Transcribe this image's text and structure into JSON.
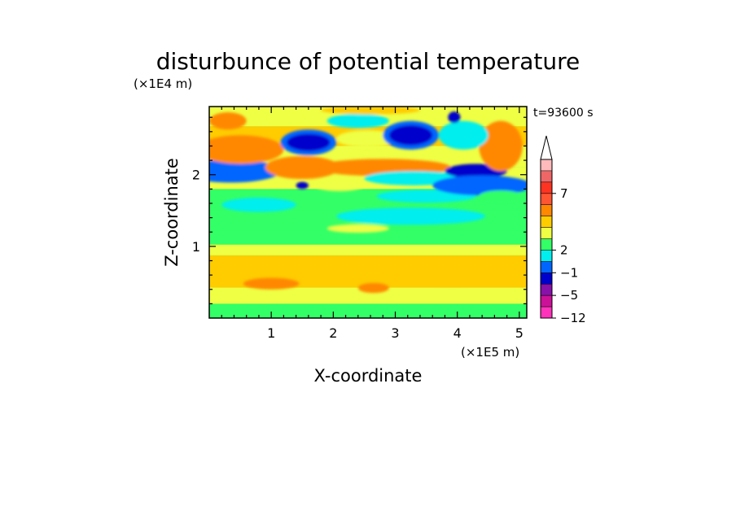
{
  "chart_data": {
    "type": "heatmap",
    "title": "disturbunce of potential temperature",
    "xlabel": "X-coordinate",
    "ylabel": "Z-coordinate",
    "x_unit": "(×1E5 m)",
    "y_unit": "(×1E4 m)",
    "time_label": "t=93600 s",
    "xlim": [
      0,
      5.12
    ],
    "ylim": [
      0,
      2.95
    ],
    "x_ticks": [
      "1",
      "2",
      "3",
      "4",
      "5"
    ],
    "y_ticks": [
      "1",
      "2"
    ],
    "colorbar": {
      "tick_labels": [
        "7",
        "2",
        "−1",
        "−5",
        "−12"
      ],
      "colors": [
        "#ff33bb",
        "#cc1199",
        "#8811aa",
        "#0000cc",
        "#0066ff",
        "#00eeee",
        "#33ff66",
        "#eeff44",
        "#ffcc00",
        "#ff8800",
        "#ff5533",
        "#ff3322",
        "#ee6666",
        "#ffbbbb"
      ]
    },
    "bands": [
      {
        "z": 0.1,
        "color": "#33ff66"
      },
      {
        "z": 0.3,
        "color": "#eeff44"
      },
      {
        "z": 0.55,
        "color": "#ffcc00"
      },
      {
        "z": 0.8,
        "color": "#ffcc00"
      },
      {
        "z": 0.95,
        "color": "#eeff44"
      },
      {
        "z": 1.1,
        "color": "#33ff66"
      },
      {
        "z": 1.35,
        "color": "#33ff66"
      },
      {
        "z": 1.65,
        "color": "#33ff66"
      },
      {
        "z": 1.95,
        "color": "#eeff44"
      },
      {
        "z": 2.25,
        "color": "#eeff44"
      },
      {
        "z": 2.55,
        "color": "#ffcc00"
      },
      {
        "z": 2.8,
        "color": "#eeff44"
      }
    ],
    "features": [
      {
        "x": 2.65,
        "z": 0.42,
        "dx": 0.25,
        "dz": 0.07,
        "color": "#ff8800"
      },
      {
        "x": 1.0,
        "z": 0.48,
        "dx": 0.45,
        "dz": 0.08,
        "color": "#ff8800"
      },
      {
        "x": 3.9,
        "z": 0.55,
        "dx": 0.6,
        "dz": 0.1,
        "color": "#ffcc00"
      },
      {
        "x": 0.8,
        "z": 1.58,
        "dx": 0.6,
        "dz": 0.1,
        "color": "#00eeee"
      },
      {
        "x": 3.25,
        "z": 1.42,
        "dx": 1.2,
        "dz": 0.12,
        "color": "#00eeee"
      },
      {
        "x": 3.5,
        "z": 1.7,
        "dx": 0.8,
        "dz": 0.09,
        "color": "#00eeee"
      },
      {
        "x": 2.1,
        "z": 1.85,
        "dx": 0.4,
        "dz": 0.08,
        "color": "#eeff44"
      },
      {
        "x": 0.45,
        "z": 2.05,
        "dx": 0.55,
        "dz": 0.1,
        "color": "#0000cc"
      },
      {
        "x": 0.35,
        "z": 2.05,
        "dx": 0.8,
        "dz": 0.16,
        "color": "#0066ff"
      },
      {
        "x": 1.5,
        "z": 2.1,
        "dx": 0.6,
        "dz": 0.16,
        "color": "#ff8800"
      },
      {
        "x": 2.8,
        "z": 2.1,
        "dx": 1.1,
        "dz": 0.12,
        "color": "#ff8800"
      },
      {
        "x": 3.3,
        "z": 1.95,
        "dx": 0.8,
        "dz": 0.1,
        "color": "#00eeee"
      },
      {
        "x": 4.3,
        "z": 2.05,
        "dx": 0.5,
        "dz": 0.1,
        "color": "#0000cc"
      },
      {
        "x": 4.4,
        "z": 1.85,
        "dx": 0.8,
        "dz": 0.14,
        "color": "#0066ff"
      },
      {
        "x": 4.7,
        "z": 2.4,
        "dx": 0.35,
        "dz": 0.35,
        "color": "#ff8800"
      },
      {
        "x": 0.5,
        "z": 2.35,
        "dx": 0.7,
        "dz": 0.2,
        "color": "#ff8800"
      },
      {
        "x": 1.6,
        "z": 2.45,
        "dx": 0.45,
        "dz": 0.18,
        "color": "#0066ff"
      },
      {
        "x": 1.6,
        "z": 2.45,
        "dx": 0.35,
        "dz": 0.12,
        "color": "#0000cc"
      },
      {
        "x": 2.55,
        "z": 2.5,
        "dx": 0.5,
        "dz": 0.12,
        "color": "#eeff44"
      },
      {
        "x": 3.25,
        "z": 2.55,
        "dx": 0.45,
        "dz": 0.2,
        "color": "#0066ff"
      },
      {
        "x": 3.25,
        "z": 2.55,
        "dx": 0.35,
        "dz": 0.14,
        "color": "#0000cc"
      },
      {
        "x": 4.1,
        "z": 2.55,
        "dx": 0.4,
        "dz": 0.2,
        "color": "#00eeee"
      },
      {
        "x": 3.95,
        "z": 2.8,
        "dx": 0.1,
        "dz": 0.08,
        "color": "#0000cc"
      },
      {
        "x": 2.4,
        "z": 2.75,
        "dx": 0.5,
        "dz": 0.1,
        "color": "#00eeee"
      },
      {
        "x": 0.3,
        "z": 2.75,
        "dx": 0.3,
        "dz": 0.12,
        "color": "#ff8800"
      },
      {
        "x": 2.6,
        "z": 2.9,
        "dx": 0.8,
        "dz": 0.06,
        "color": "#ffcc00"
      },
      {
        "x": 1.5,
        "z": 1.85,
        "dx": 0.1,
        "dz": 0.05,
        "color": "#0000cc"
      },
      {
        "x": 4.7,
        "z": 1.7,
        "dx": 0.35,
        "dz": 0.08,
        "color": "#33ff66"
      },
      {
        "x": 2.4,
        "z": 1.25,
        "dx": 0.5,
        "dz": 0.06,
        "color": "#eeff44"
      }
    ]
  }
}
